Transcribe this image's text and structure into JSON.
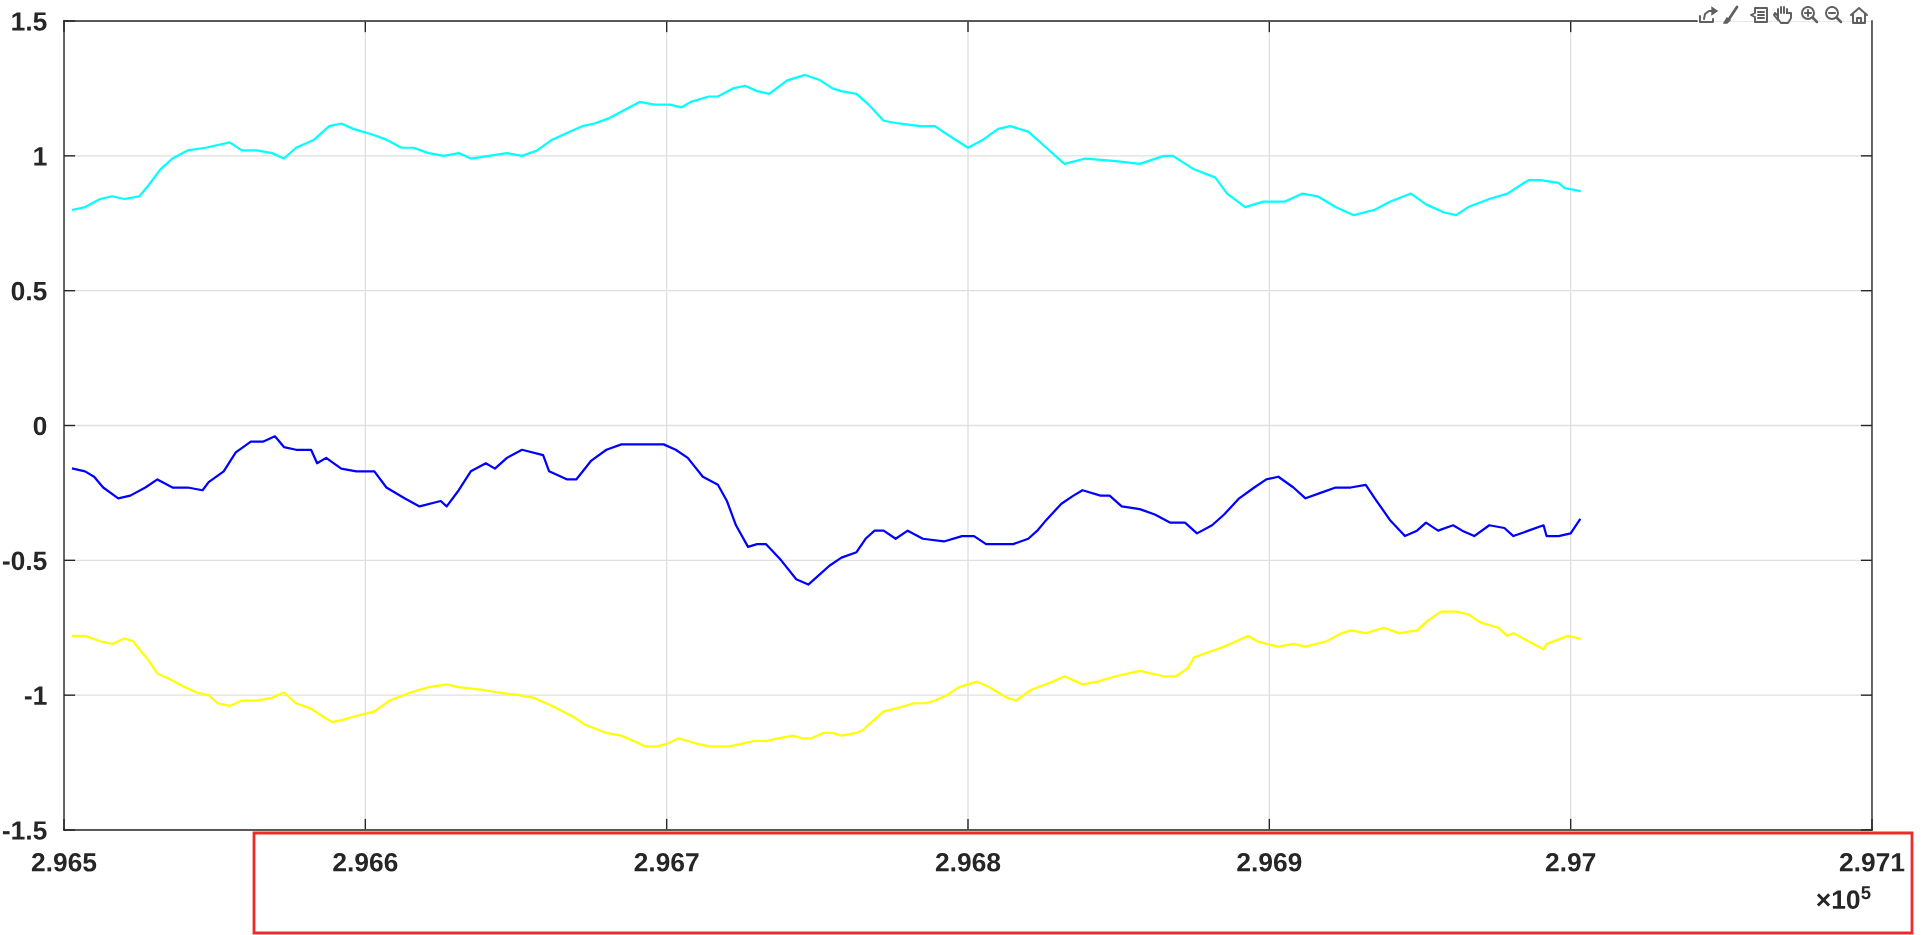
{
  "chart_data": {
    "type": "line",
    "xlim": [
      2.965,
      2.971
    ],
    "xticks": [
      2.965,
      2.966,
      2.967,
      2.968,
      2.969,
      2.97,
      2.971
    ],
    "ylim": [
      -1.5,
      1.5
    ],
    "yticks": [
      -1.5,
      -1,
      -0.5,
      0,
      0.5,
      1,
      1.5
    ],
    "grid": true,
    "line_style": "solid",
    "annotations": [
      "×10$^{5}$"
    ],
    "series": [
      {
        "color": "#00ffff",
        "x": [
          2.96503,
          2.96507,
          2.96512,
          2.96516,
          2.9652,
          2.96525,
          2.96528,
          2.96532,
          2.96536,
          2.96541,
          2.96547,
          2.96555,
          2.96559,
          2.96564,
          2.96569,
          2.96573,
          2.96577,
          2.96583,
          2.96588,
          2.96592,
          2.96596,
          2.96602,
          2.96607,
          2.96612,
          2.96616,
          2.96621,
          2.96626,
          2.96631,
          2.96635,
          2.96641,
          2.96647,
          2.96652,
          2.96657,
          2.96662,
          2.96668,
          2.96672,
          2.96676,
          2.96681,
          2.96686,
          2.96691,
          2.96696,
          2.96701,
          2.96705,
          2.96708,
          2.96714,
          2.96717,
          2.96722,
          2.96726,
          2.9673,
          2.96734,
          2.9674,
          2.96746,
          2.96751,
          2.96755,
          2.96758,
          2.96763,
          2.96767,
          2.96772,
          2.96777,
          2.96784,
          2.96789,
          2.96793,
          2.968,
          2.96805,
          2.9681,
          2.96814,
          2.9682,
          2.96826,
          2.96832,
          2.96839,
          2.96849,
          2.96857,
          2.96865,
          2.96868,
          2.96875,
          2.96882,
          2.96886,
          2.96892,
          2.96898,
          2.96905,
          2.96911,
          2.96916,
          2.96922,
          2.96928,
          2.96935,
          2.9694,
          2.96947,
          2.96952,
          2.96958,
          2.96962,
          2.96966,
          2.96973,
          2.96979,
          2.96986,
          2.9699,
          2.96996,
          2.96998,
          2.97003
        ],
        "values": [
          0.8,
          0.81,
          0.84,
          0.85,
          0.84,
          0.85,
          0.89,
          0.95,
          0.99,
          1.02,
          1.03,
          1.05,
          1.02,
          1.02,
          1.01,
          0.99,
          1.03,
          1.06,
          1.11,
          1.12,
          1.1,
          1.08,
          1.06,
          1.03,
          1.03,
          1.01,
          1.0,
          1.01,
          0.99,
          1.0,
          1.01,
          1.0,
          1.02,
          1.06,
          1.09,
          1.11,
          1.12,
          1.14,
          1.17,
          1.2,
          1.19,
          1.19,
          1.18,
          1.2,
          1.22,
          1.22,
          1.25,
          1.26,
          1.24,
          1.23,
          1.28,
          1.3,
          1.28,
          1.25,
          1.24,
          1.23,
          1.19,
          1.13,
          1.12,
          1.11,
          1.11,
          1.08,
          1.03,
          1.06,
          1.1,
          1.11,
          1.09,
          1.03,
          0.97,
          0.99,
          0.98,
          0.97,
          1.0,
          1.0,
          0.95,
          0.92,
          0.86,
          0.81,
          0.83,
          0.83,
          0.86,
          0.85,
          0.81,
          0.78,
          0.8,
          0.83,
          0.86,
          0.82,
          0.79,
          0.78,
          0.81,
          0.84,
          0.86,
          0.91,
          0.91,
          0.9,
          0.88,
          0.87
        ]
      },
      {
        "color": "#0000ff",
        "x": [
          2.96503,
          2.96507,
          2.9651,
          2.96513,
          2.96518,
          2.96522,
          2.96527,
          2.96531,
          2.96536,
          2.96541,
          2.96546,
          2.96548,
          2.96553,
          2.96557,
          2.96562,
          2.96566,
          2.9657,
          2.96573,
          2.96577,
          2.96582,
          2.96584,
          2.96587,
          2.96592,
          2.96597,
          2.96603,
          2.96607,
          2.96613,
          2.96618,
          2.96625,
          2.96627,
          2.96631,
          2.96635,
          2.9664,
          2.96643,
          2.96647,
          2.96652,
          2.96659,
          2.96661,
          2.96667,
          2.9667,
          2.96675,
          2.9668,
          2.96685,
          2.96691,
          2.96699,
          2.96703,
          2.96707,
          2.96712,
          2.96717,
          2.9672,
          2.96723,
          2.96727,
          2.9673,
          2.96733,
          2.96738,
          2.96743,
          2.96747,
          2.96751,
          2.96754,
          2.96758,
          2.96763,
          2.96766,
          2.96769,
          2.96772,
          2.96776,
          2.9678,
          2.96785,
          2.96792,
          2.96798,
          2.96802,
          2.96806,
          2.96811,
          2.96815,
          2.9682,
          2.96823,
          2.96826,
          2.96831,
          2.96835,
          2.96838,
          2.96844,
          2.96847,
          2.96851,
          2.96857,
          2.96862,
          2.96867,
          2.96872,
          2.96876,
          2.96881,
          2.96885,
          2.9689,
          2.96895,
          2.96899,
          2.96903,
          2.96908,
          2.96912,
          2.96917,
          2.96922,
          2.96927,
          2.96932,
          2.96935,
          2.9694,
          2.96945,
          2.96949,
          2.96952,
          2.96956,
          2.96961,
          2.96964,
          2.96968,
          2.96973,
          2.96978,
          2.96981,
          2.96986,
          2.96991,
          2.96992,
          2.96996,
          2.97,
          2.97003
        ],
        "values": [
          -0.16,
          -0.17,
          -0.19,
          -0.23,
          -0.27,
          -0.26,
          -0.23,
          -0.2,
          -0.23,
          -0.23,
          -0.24,
          -0.21,
          -0.17,
          -0.1,
          -0.06,
          -0.06,
          -0.04,
          -0.08,
          -0.09,
          -0.09,
          -0.14,
          -0.12,
          -0.16,
          -0.17,
          -0.17,
          -0.23,
          -0.27,
          -0.3,
          -0.28,
          -0.3,
          -0.24,
          -0.17,
          -0.14,
          -0.16,
          -0.12,
          -0.09,
          -0.11,
          -0.17,
          -0.2,
          -0.2,
          -0.13,
          -0.09,
          -0.07,
          -0.07,
          -0.07,
          -0.09,
          -0.12,
          -0.19,
          -0.22,
          -0.28,
          -0.37,
          -0.45,
          -0.44,
          -0.44,
          -0.5,
          -0.57,
          -0.59,
          -0.55,
          -0.52,
          -0.49,
          -0.47,
          -0.42,
          -0.39,
          -0.39,
          -0.42,
          -0.39,
          -0.42,
          -0.43,
          -0.41,
          -0.41,
          -0.44,
          -0.44,
          -0.44,
          -0.42,
          -0.39,
          -0.35,
          -0.29,
          -0.26,
          -0.24,
          -0.26,
          -0.26,
          -0.3,
          -0.31,
          -0.33,
          -0.36,
          -0.36,
          -0.4,
          -0.37,
          -0.33,
          -0.27,
          -0.23,
          -0.2,
          -0.19,
          -0.23,
          -0.27,
          -0.25,
          -0.23,
          -0.23,
          -0.22,
          -0.27,
          -0.35,
          -0.41,
          -0.39,
          -0.36,
          -0.39,
          -0.37,
          -0.39,
          -0.41,
          -0.37,
          -0.38,
          -0.41,
          -0.39,
          -0.37,
          -0.41,
          -0.41,
          -0.4,
          -0.35
        ]
      },
      {
        "color": "#ffff00",
        "x": [
          2.96503,
          2.96507,
          2.96512,
          2.96516,
          2.9652,
          2.96523,
          2.96525,
          2.96528,
          2.96531,
          2.96535,
          2.9654,
          2.96544,
          2.96548,
          2.96551,
          2.96555,
          2.96559,
          2.96564,
          2.96569,
          2.96573,
          2.96577,
          2.96582,
          2.96586,
          2.96589,
          2.96593,
          2.96596,
          2.96603,
          2.96608,
          2.96615,
          2.96621,
          2.96627,
          2.96631,
          2.96639,
          2.96644,
          2.96651,
          2.96656,
          2.96662,
          2.96669,
          2.96673,
          2.9668,
          2.96685,
          2.96689,
          2.96693,
          2.96697,
          2.967,
          2.96704,
          2.96707,
          2.9671,
          2.96714,
          2.96717,
          2.96721,
          2.96725,
          2.96729,
          2.96733,
          2.96737,
          2.96742,
          2.96745,
          2.96748,
          2.96752,
          2.96755,
          2.96758,
          2.96763,
          2.96765,
          2.96769,
          2.96772,
          2.96776,
          2.96779,
          2.96782,
          2.96786,
          2.96789,
          2.96793,
          2.96797,
          2.968,
          2.96803,
          2.96807,
          2.9681,
          2.96813,
          2.96816,
          2.96821,
          2.96828,
          2.96832,
          2.96838,
          2.96843,
          2.96849,
          2.96857,
          2.96865,
          2.96869,
          2.96873,
          2.96875,
          2.9688,
          2.96885,
          2.96889,
          2.96893,
          2.96896,
          2.96899,
          2.96903,
          2.96908,
          2.96912,
          2.96919,
          2.96924,
          2.96927,
          2.96932,
          2.96938,
          2.96943,
          2.96949,
          2.96953,
          2.96957,
          2.96962,
          2.96966,
          2.9697,
          2.96976,
          2.96979,
          2.96981,
          2.96986,
          2.96991,
          2.96992,
          2.96999,
          2.97003
        ],
        "values": [
          -0.78,
          -0.78,
          -0.8,
          -0.81,
          -0.79,
          -0.8,
          -0.83,
          -0.87,
          -0.92,
          -0.94,
          -0.97,
          -0.99,
          -1.0,
          -1.03,
          -1.04,
          -1.02,
          -1.02,
          -1.01,
          -0.99,
          -1.03,
          -1.05,
          -1.08,
          -1.1,
          -1.09,
          -1.08,
          -1.06,
          -1.02,
          -0.99,
          -0.97,
          -0.96,
          -0.97,
          -0.98,
          -0.99,
          -1.0,
          -1.01,
          -1.04,
          -1.08,
          -1.11,
          -1.14,
          -1.15,
          -1.17,
          -1.19,
          -1.19,
          -1.18,
          -1.16,
          -1.17,
          -1.18,
          -1.19,
          -1.19,
          -1.19,
          -1.18,
          -1.17,
          -1.17,
          -1.16,
          -1.15,
          -1.16,
          -1.16,
          -1.14,
          -1.14,
          -1.15,
          -1.14,
          -1.13,
          -1.09,
          -1.06,
          -1.05,
          -1.04,
          -1.03,
          -1.03,
          -1.02,
          -1.0,
          -0.97,
          -0.96,
          -0.95,
          -0.97,
          -0.99,
          -1.01,
          -1.02,
          -0.98,
          -0.95,
          -0.93,
          -0.96,
          -0.95,
          -0.93,
          -0.91,
          -0.93,
          -0.93,
          -0.9,
          -0.86,
          -0.84,
          -0.82,
          -0.8,
          -0.78,
          -0.8,
          -0.81,
          -0.82,
          -0.81,
          -0.82,
          -0.8,
          -0.77,
          -0.76,
          -0.77,
          -0.75,
          -0.77,
          -0.76,
          -0.72,
          -0.69,
          -0.69,
          -0.7,
          -0.73,
          -0.75,
          -0.78,
          -0.77,
          -0.8,
          -0.83,
          -0.81,
          -0.78,
          -0.79
        ]
      }
    ]
  }
}
